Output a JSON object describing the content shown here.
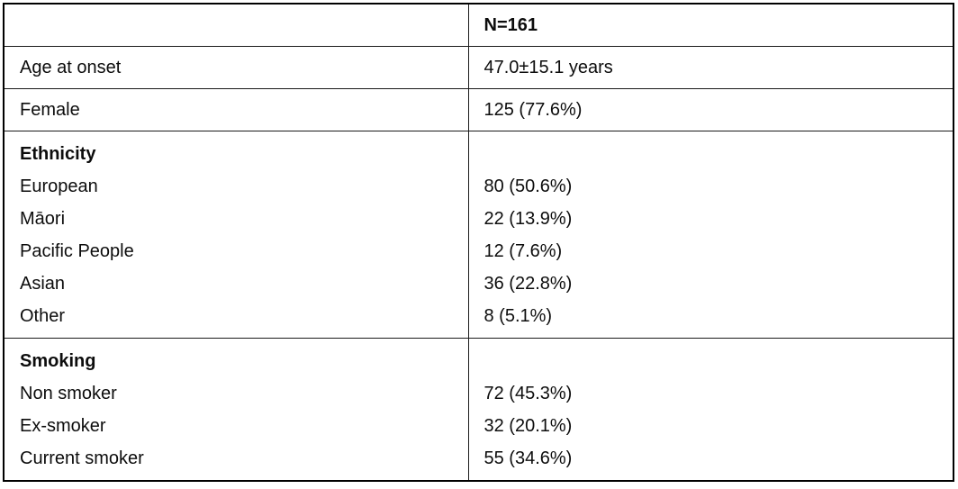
{
  "table": {
    "header": {
      "label": "",
      "value": "N=161"
    },
    "rows": [
      {
        "label": "Age at onset",
        "value": "47.0±15.1 years"
      },
      {
        "label": "Female",
        "value": "125 (77.6%)"
      }
    ],
    "groups": [
      {
        "title": "Ethnicity",
        "items": [
          {
            "label": "European",
            "value": "80 (50.6%)"
          },
          {
            "label": "Māori",
            "value": "22 (13.9%)"
          },
          {
            "label": "Pacific People",
            "value": "12 (7.6%)"
          },
          {
            "label": "Asian",
            "value": "36 (22.8%)"
          },
          {
            "label": "Other",
            "value": "8 (5.1%)"
          }
        ]
      },
      {
        "title": "Smoking",
        "items": [
          {
            "label": "Non smoker",
            "value": "72 (45.3%)"
          },
          {
            "label": "Ex-smoker",
            "value": "32 (20.1%)"
          },
          {
            "label": "Current smoker",
            "value": "55 (34.6%)"
          }
        ]
      }
    ],
    "colors": {
      "text": "#0d0d0d",
      "border": "#000000",
      "background": "#ffffff"
    }
  }
}
